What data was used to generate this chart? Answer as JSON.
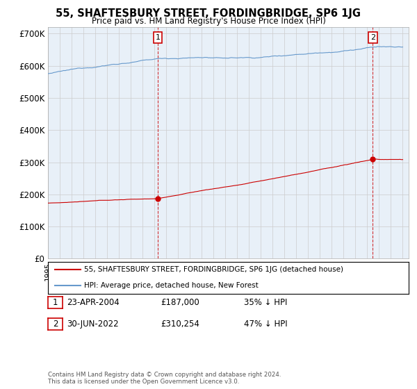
{
  "title": "55, SHAFTESBURY STREET, FORDINGBRIDGE, SP6 1JG",
  "subtitle": "Price paid vs. HM Land Registry's House Price Index (HPI)",
  "ylabel_ticks": [
    "£0",
    "£100K",
    "£200K",
    "£300K",
    "£400K",
    "£500K",
    "£600K",
    "£700K"
  ],
  "ytick_values": [
    0,
    100000,
    200000,
    300000,
    400000,
    500000,
    600000,
    700000
  ],
  "ylim": [
    0,
    720000
  ],
  "legend_line1": "55, SHAFTESBURY STREET, FORDINGBRIDGE, SP6 1JG (detached house)",
  "legend_line2": "HPI: Average price, detached house, New Forest",
  "marker1_label": "1",
  "marker1_date": "23-APR-2004",
  "marker1_price": "£187,000",
  "marker1_hpi": "35% ↓ HPI",
  "marker2_label": "2",
  "marker2_date": "30-JUN-2022",
  "marker2_price": "£310,254",
  "marker2_hpi": "47% ↓ HPI",
  "footnote1": "Contains HM Land Registry data © Crown copyright and database right 2024.",
  "footnote2": "This data is licensed under the Open Government Licence v3.0.",
  "hpi_color": "#6699cc",
  "price_color": "#cc0000",
  "marker_color": "#cc0000",
  "grid_color": "#cccccc",
  "plot_bg_color": "#e8f0f8",
  "bg_color": "#ffffff"
}
